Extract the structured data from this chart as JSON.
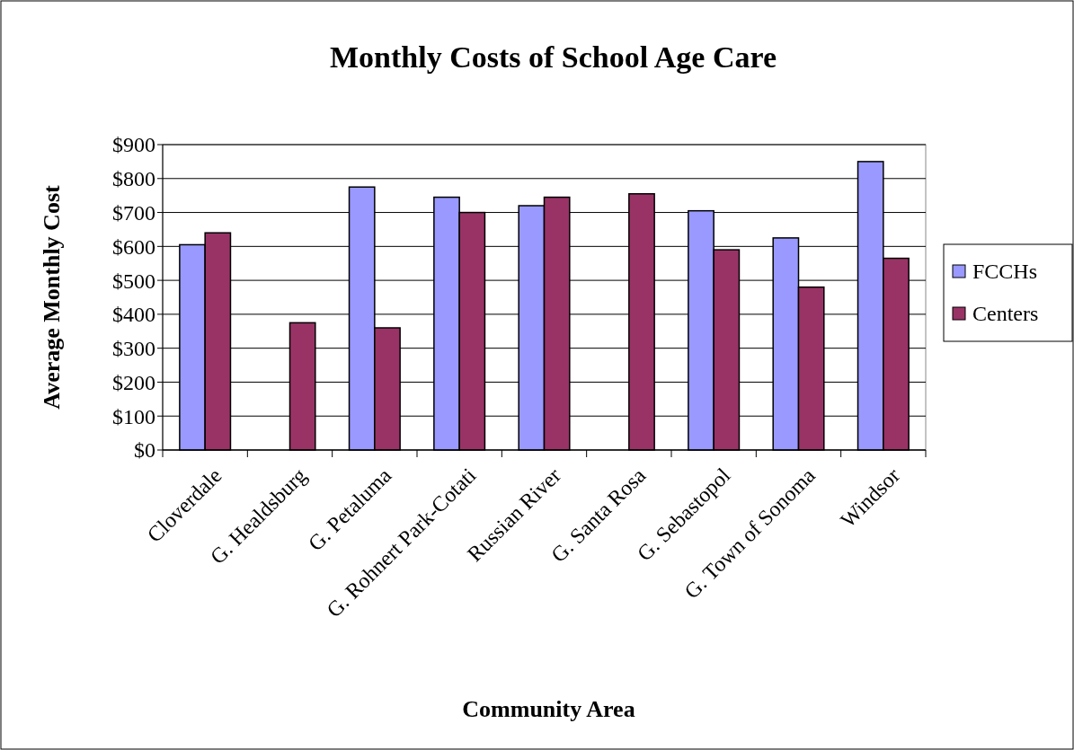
{
  "chart_data": {
    "type": "bar",
    "title": "Monthly Costs of School Age Care",
    "xlabel": "Community Area",
    "ylabel": "Average Monthly Cost",
    "categories": [
      "Cloverdale",
      "G. Healdsburg",
      "G. Petaluma",
      "G. Rohnert Park-Cotati",
      "Russian River",
      "G. Santa Rosa",
      "G. Sebastopol",
      "G. Town of Sonoma",
      "Windsor"
    ],
    "series": [
      {
        "name": "FCCHs",
        "color": "#9999ff",
        "values": [
          605,
          null,
          775,
          745,
          720,
          null,
          705,
          625,
          850
        ]
      },
      {
        "name": "Centers",
        "color": "#993366",
        "values": [
          640,
          375,
          360,
          700,
          745,
          755,
          590,
          480,
          565
        ]
      }
    ],
    "ylim": [
      0,
      900
    ],
    "yticks": [
      {
        "value": 0,
        "label": "$0"
      },
      {
        "value": 100,
        "label": "$100"
      },
      {
        "value": 200,
        "label": "$200"
      },
      {
        "value": 300,
        "label": "$300"
      },
      {
        "value": 400,
        "label": "$400"
      },
      {
        "value": 500,
        "label": "$500"
      },
      {
        "value": 600,
        "label": "$600"
      },
      {
        "value": 700,
        "label": "$700"
      },
      {
        "value": 800,
        "label": "$800"
      },
      {
        "value": 900,
        "label": "$900"
      }
    ],
    "grid": "y",
    "legend": "right"
  }
}
